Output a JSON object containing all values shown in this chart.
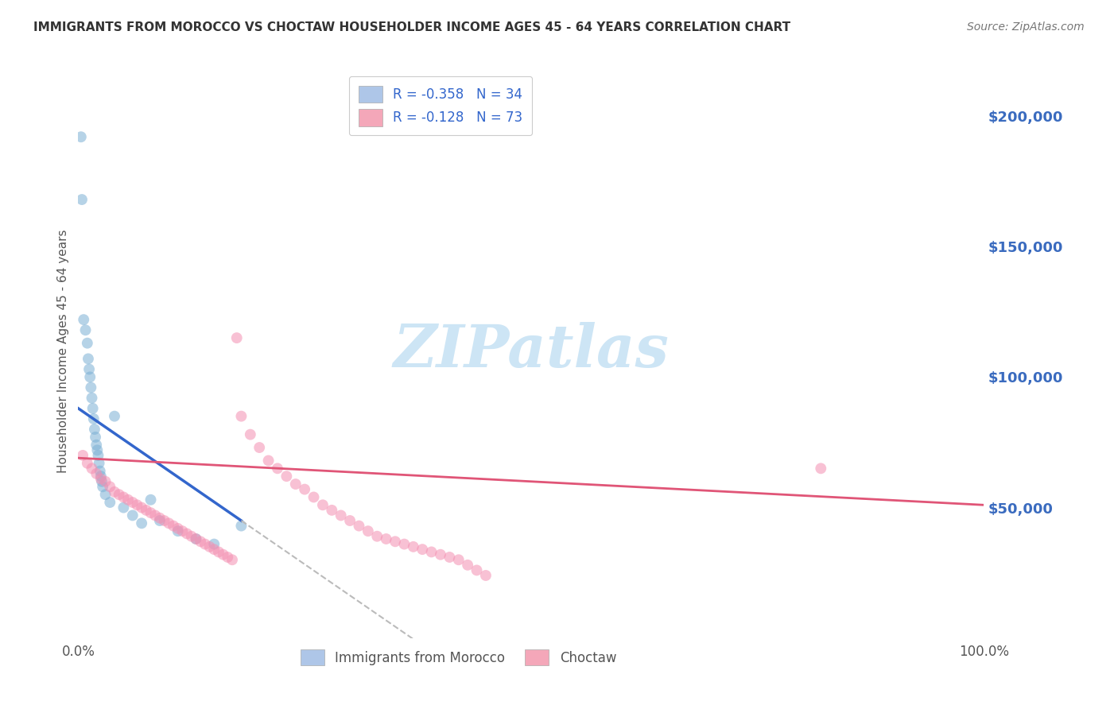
{
  "title": "IMMIGRANTS FROM MOROCCO VS CHOCTAW HOUSEHOLDER INCOME AGES 45 - 64 YEARS CORRELATION CHART",
  "source": "Source: ZipAtlas.com",
  "ylabel": "Householder Income Ages 45 - 64 years",
  "y_tick_labels": [
    "$50,000",
    "$100,000",
    "$150,000",
    "$200,000"
  ],
  "y_tick_values": [
    50000,
    100000,
    150000,
    200000
  ],
  "legend_label1": "Immigrants from Morocco",
  "legend_label2": "Choctaw",
  "morocco_color": "#7bafd4",
  "choctaw_color": "#f48fb1",
  "regression_blue": "#3366cc",
  "regression_pink": "#e05577",
  "regression_dashed": "#bbbbbb",
  "background_color": "#ffffff",
  "grid_color": "#cccccc",
  "watermark_color": "#cde5f5",
  "title_color": "#333333",
  "axis_label_color": "#555555",
  "right_tick_color": "#3a6bbf",
  "xlim": [
    0,
    100
  ],
  "ylim": [
    0,
    220000
  ],
  "morocco_x": [
    0.3,
    0.4,
    0.6,
    0.8,
    1.0,
    1.1,
    1.2,
    1.3,
    1.4,
    1.5,
    1.6,
    1.7,
    1.8,
    1.9,
    2.0,
    2.1,
    2.2,
    2.3,
    2.4,
    2.5,
    2.6,
    2.7,
    3.0,
    3.5,
    4.0,
    5.0,
    6.0,
    7.0,
    8.0,
    9.0,
    11.0,
    13.0,
    15.0,
    18.0
  ],
  "morocco_y": [
    192000,
    168000,
    122000,
    118000,
    113000,
    107000,
    103000,
    100000,
    96000,
    92000,
    88000,
    84000,
    80000,
    77000,
    74000,
    72000,
    70000,
    67000,
    64000,
    62000,
    60000,
    58000,
    55000,
    52000,
    85000,
    50000,
    47000,
    44000,
    53000,
    45000,
    41000,
    38000,
    36000,
    43000
  ],
  "choctaw_x": [
    0.5,
    1.0,
    1.5,
    2.0,
    2.5,
    3.0,
    3.5,
    4.0,
    4.5,
    5.0,
    5.5,
    6.0,
    6.5,
    7.0,
    7.5,
    8.0,
    8.5,
    9.0,
    9.5,
    10.0,
    10.5,
    11.0,
    11.5,
    12.0,
    12.5,
    13.0,
    13.5,
    14.0,
    14.5,
    15.0,
    15.5,
    16.0,
    16.5,
    17.0,
    17.5,
    18.0,
    19.0,
    20.0,
    21.0,
    22.0,
    23.0,
    24.0,
    25.0,
    26.0,
    27.0,
    28.0,
    29.0,
    30.0,
    31.0,
    32.0,
    33.0,
    34.0,
    35.0,
    36.0,
    37.0,
    38.0,
    39.0,
    40.0,
    41.0,
    42.0,
    43.0,
    44.0,
    45.0,
    82.0
  ],
  "choctaw_y": [
    70000,
    67000,
    65000,
    63000,
    61000,
    60000,
    58000,
    56000,
    55000,
    54000,
    53000,
    52000,
    51000,
    50000,
    49000,
    48000,
    47000,
    46000,
    45000,
    44000,
    43000,
    42000,
    41000,
    40000,
    39000,
    38000,
    37000,
    36000,
    35000,
    34000,
    33000,
    32000,
    31000,
    30000,
    115000,
    85000,
    78000,
    73000,
    68000,
    65000,
    62000,
    59000,
    57000,
    54000,
    51000,
    49000,
    47000,
    45000,
    43000,
    41000,
    39000,
    38000,
    37000,
    36000,
    35000,
    34000,
    33000,
    32000,
    31000,
    30000,
    28000,
    26000,
    24000,
    65000
  ],
  "blue_reg_x0": 0,
  "blue_reg_y0": 88000,
  "blue_reg_x1": 18,
  "blue_reg_y1": 45000,
  "blue_reg_ext_x1": 48,
  "pink_reg_x0": 0,
  "pink_reg_y0": 69000,
  "pink_reg_x1": 100,
  "pink_reg_y1": 51000
}
